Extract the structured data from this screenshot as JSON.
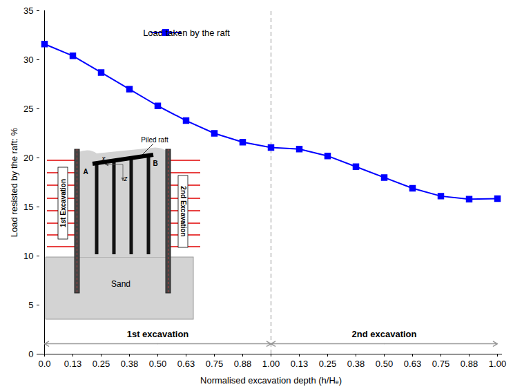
{
  "chart_data": {
    "type": "line",
    "categories": [
      "0.0",
      "0.13",
      "0.25",
      "0.38",
      "0.50",
      "0.63",
      "0.75",
      "0.88",
      "1.00",
      "0.13",
      "0.25",
      "0.38",
      "0.50",
      "0.63",
      "0.75",
      "0.88",
      "1.00"
    ],
    "series": [
      {
        "name": "Load taken by the raft",
        "color": "#0000ff",
        "marker": "square",
        "values": [
          31.6,
          30.4,
          28.7,
          27.0,
          25.3,
          23.8,
          22.5,
          21.6,
          21.05,
          20.9,
          20.2,
          19.1,
          18.0,
          16.9,
          16.1,
          15.8,
          15.85
        ]
      }
    ],
    "xlabel": "Normalised excavation depth (h/Hₑ)",
    "ylabel": "Load resisted by the raft: %",
    "ylim": [
      0,
      35
    ],
    "yticks": [
      0,
      5,
      10,
      15,
      20,
      25,
      30,
      35
    ],
    "legend": "top",
    "annotations": [
      "1st excavation",
      "2nd excavation"
    ],
    "inset": {
      "raft": "Piled raft",
      "axes": [
        "x",
        "z"
      ],
      "ends": [
        "A",
        "B"
      ],
      "excavations": [
        "1st Excavation",
        "2nd Excavation"
      ],
      "soil": "Sand"
    }
  }
}
